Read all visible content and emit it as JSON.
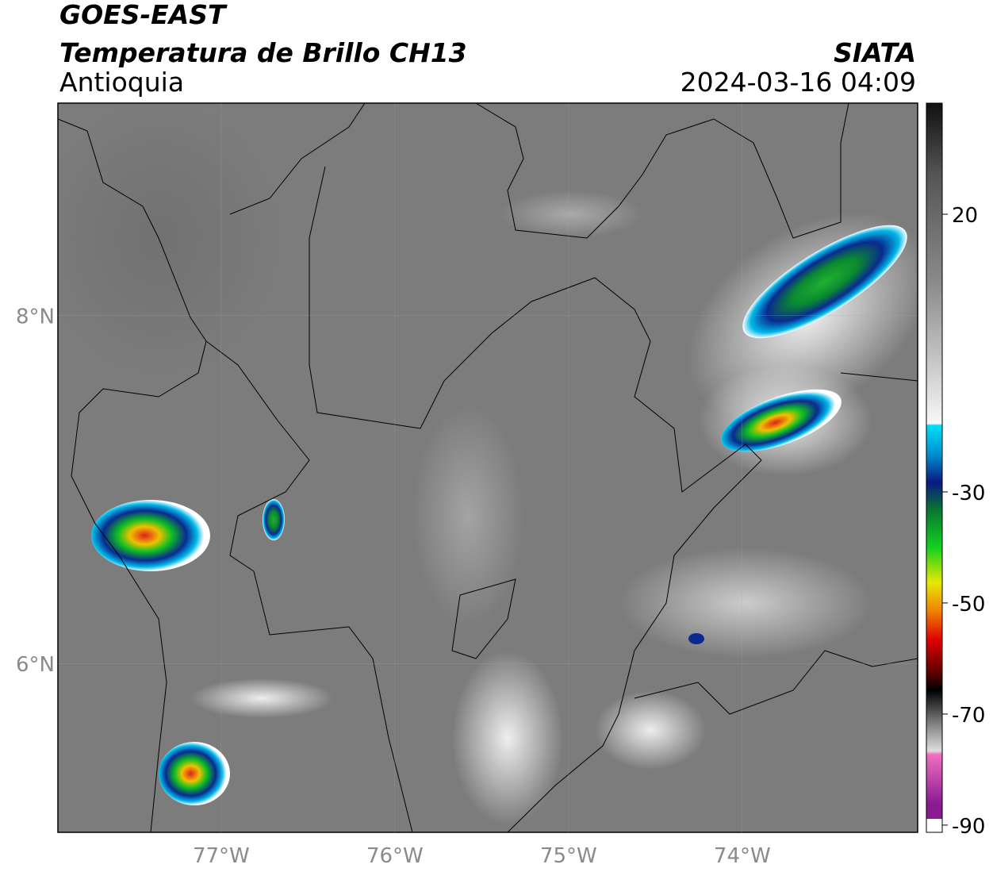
{
  "header": {
    "title": "GOES-EAST",
    "subtitle": "Temperatura de Brillo CH13",
    "region": "Antioquia",
    "source": "SIATA",
    "timestamp": "2024-03-16 04:09"
  },
  "map": {
    "lon_range": [
      -77.94,
      -72.99
    ],
    "lat_range": [
      9.22,
      5.03
    ],
    "lon_ticks": [
      {
        "value": -77,
        "label": "77°W"
      },
      {
        "value": -76,
        "label": "76°W"
      },
      {
        "value": -75,
        "label": "75°W"
      },
      {
        "value": -74,
        "label": "74°W"
      }
    ],
    "lat_ticks": [
      {
        "value": 8,
        "label": "8°N"
      },
      {
        "value": 6,
        "label": "6°N"
      }
    ]
  },
  "colorbar": {
    "range": [
      40,
      -91.3
    ],
    "ticks": [
      20,
      -30,
      -50,
      -70,
      -90
    ]
  }
}
